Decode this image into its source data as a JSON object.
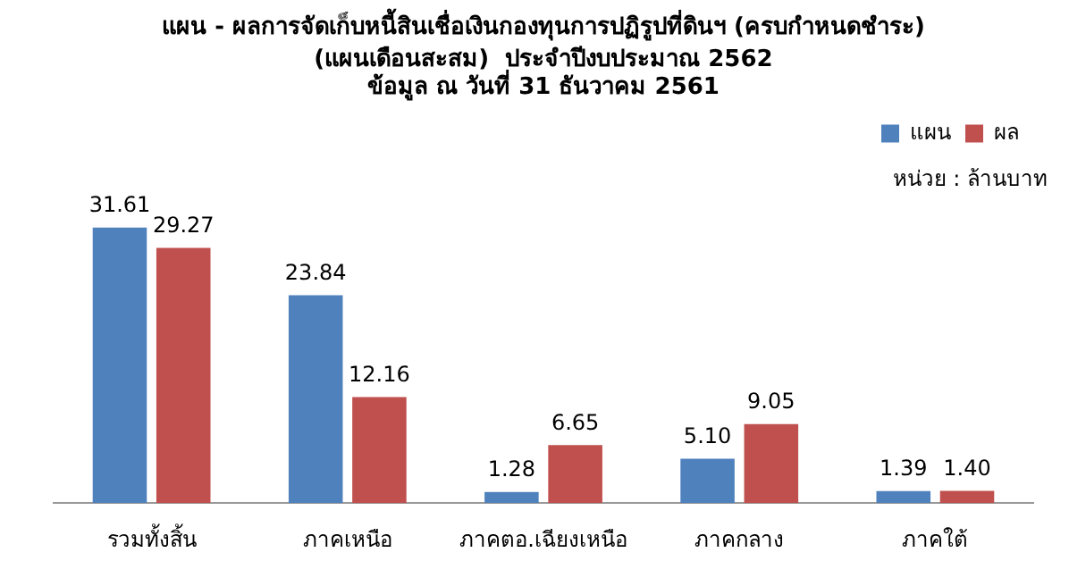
{
  "chart_data": {
    "type": "bar",
    "title": "แผน - ผลการจัดเก็บหนี้สินเชื่อเงินกองทุนการปฏิรูปที่ดินฯ (ครบกำหนดชำระ)",
    "subtitle": "(แผนเดือนสะสม)  ประจำปีงบประมาณ 2562\nข้อมูล ณ วันที่ 31 ธันวาคม 2561",
    "annotations": [
      "หน่วย : ล้านบาท"
    ],
    "categories": [
      "รวมทั้งสิ้น",
      "ภาคเหนือ",
      "ภาคตอ.เฉียงเหนือ",
      "ภาคกลาง",
      "ภาคใต้"
    ],
    "series": [
      {
        "name": "แผน",
        "color": "#4f81bd",
        "values": [
          31.61,
          23.84,
          1.28,
          5.1,
          1.39
        ],
        "value_labels": [
          "31.61",
          "23.84",
          "1.28",
          "5.10",
          "1.39"
        ]
      },
      {
        "name": "ผล",
        "color": "#c0504d",
        "values": [
          29.27,
          12.16,
          6.65,
          9.05,
          1.4
        ],
        "value_labels": [
          "29.27",
          "12.16",
          "6.65",
          "9.05",
          "1.40"
        ]
      }
    ],
    "legend": "top right"
  }
}
